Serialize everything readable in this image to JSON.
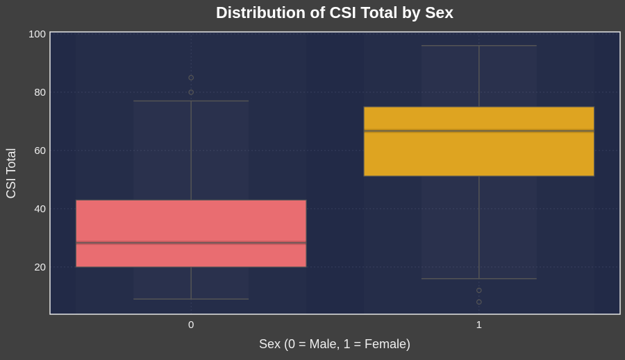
{
  "chart_data": {
    "type": "box",
    "title": "Distribution of CSI Total by Sex",
    "xlabel": "Sex (0 = Male, 1 = Female)",
    "ylabel": "CSI Total",
    "categories": [
      "0",
      "1"
    ],
    "ylim": [
      3.8,
      100.7
    ],
    "yticks": [
      20,
      40,
      60,
      80,
      100
    ],
    "grid": true,
    "boxes": [
      {
        "category": "0",
        "whisker_low": 9,
        "q1": 20,
        "median": 28.3,
        "q3": 43,
        "whisker_high": 77,
        "outliers": [
          80,
          85
        ],
        "color": "#e96d71"
      },
      {
        "category": "1",
        "whisker_low": 16,
        "q1": 51.2,
        "median": 66.7,
        "q3": 75,
        "whisker_high": 96,
        "outliers": [
          12,
          8
        ],
        "color": "#dea421"
      }
    ],
    "colors": {
      "background": "#404040",
      "plot_bg": "#222a47",
      "text": "#eeeeee",
      "line": "#555555"
    }
  }
}
